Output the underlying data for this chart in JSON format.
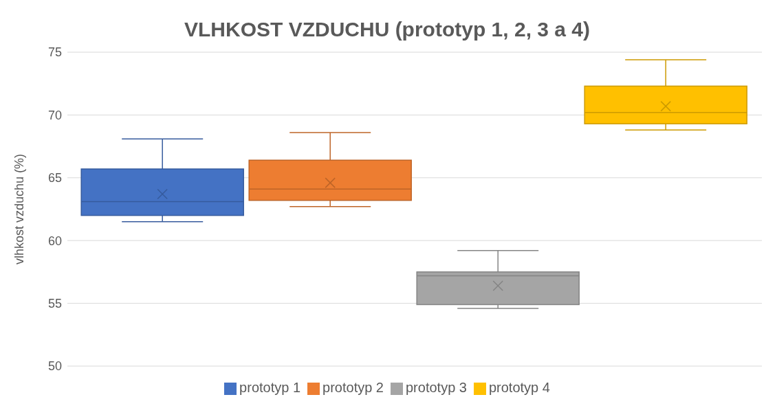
{
  "chart_data": {
    "type": "box",
    "title": "VLHKOST VZDUCHU (prototyp 1, 2, 3 a 4)",
    "ylabel": "vlhkost vzduchu (%)",
    "categories": [
      null
    ],
    "series": [
      {
        "name": "prototyp 1",
        "color": "#4472c4",
        "boxes": [
          {
            "low": 61.5,
            "q1": 62.0,
            "median": 63.1,
            "q3": 65.7,
            "high": 68.1,
            "mean": 63.7
          }
        ]
      },
      {
        "name": "prototyp 2",
        "color": "#ed7d31",
        "boxes": [
          {
            "low": 62.7,
            "q1": 63.2,
            "median": 64.1,
            "q3": 66.4,
            "high": 68.6,
            "mean": 64.6
          }
        ]
      },
      {
        "name": "prototyp 3",
        "color": "#a5a5a5",
        "boxes": [
          {
            "low": 54.6,
            "q1": 54.9,
            "median": 57.2,
            "q3": 57.5,
            "high": 59.2,
            "mean": 56.4
          }
        ]
      },
      {
        "name": "prototyp 4",
        "color": "#ffc000",
        "boxes": [
          {
            "low": 68.8,
            "q1": 69.3,
            "median": 70.2,
            "q3": 72.3,
            "high": 74.4,
            "mean": 70.7
          }
        ]
      }
    ],
    "ylim": [
      50,
      75
    ],
    "yticks": [
      50,
      55,
      60,
      65,
      70,
      75
    ],
    "grid": "y",
    "legend": "bottom"
  }
}
